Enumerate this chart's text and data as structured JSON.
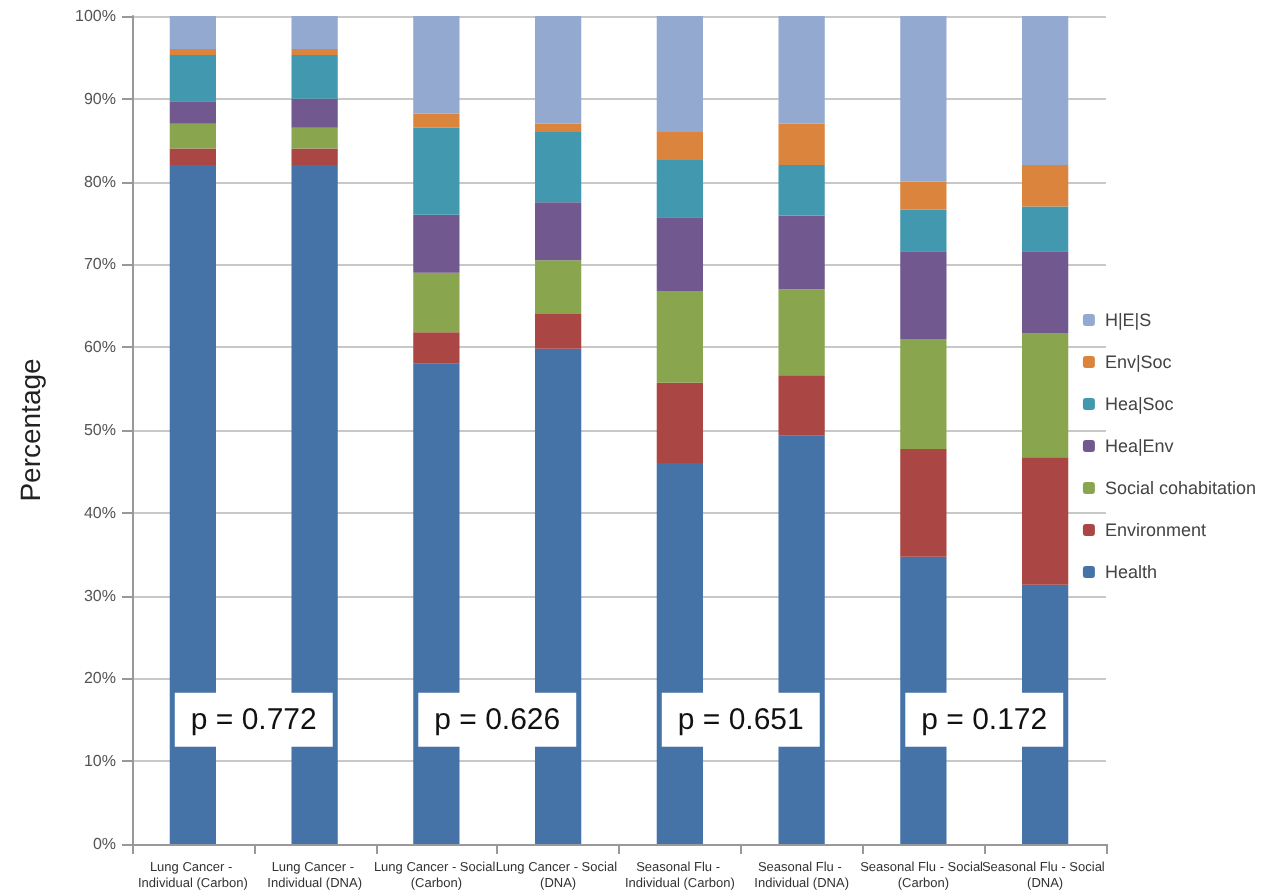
{
  "chart_data": {
    "type": "bar",
    "stacked": true,
    "ylabel": "Percentage",
    "categories": [
      "Lung Cancer - Individual (Carbon)",
      "Lung Cancer - Individual (DNA)",
      "Lung Cancer - Social (Carbon)",
      "Lung Cancer - Social (DNA)",
      "Seasonal Flu - Individual (Carbon)",
      "Seasonal Flu - Individual (DNA)",
      "Seasonal Flu - Social (Carbon)",
      "Seasonal Flu - Social (DNA)"
    ],
    "series": [
      {
        "name": "Health",
        "color": "#4572a7",
        "values": [
          82,
          82,
          58,
          59.8,
          46,
          49.3,
          34.7,
          31.3
        ]
      },
      {
        "name": "Environment",
        "color": "#aa4643",
        "values": [
          2,
          2,
          3.8,
          4.2,
          9.7,
          7.3,
          13,
          15.4
        ]
      },
      {
        "name": "Social cohabitation",
        "color": "#89a54e",
        "values": [
          3,
          2.5,
          7.2,
          6.5,
          11.1,
          10.4,
          13.3,
          15
        ]
      },
      {
        "name": "Hea|Env",
        "color": "#71588f",
        "values": [
          2.7,
          3.5,
          7,
          7,
          8.9,
          8.9,
          10.6,
          9.9
        ]
      },
      {
        "name": "Hea|Soc",
        "color": "#4198af",
        "values": [
          5.6,
          5.3,
          10.5,
          8.5,
          6.9,
          6.1,
          5,
          5.4
        ]
      },
      {
        "name": "Env|Soc",
        "color": "#db843d",
        "values": [
          0.7,
          0.7,
          1.7,
          1,
          3.4,
          5,
          3.4,
          5
        ]
      },
      {
        "name": "H|E|S",
        "color": "#93a9cf",
        "values": [
          4,
          4,
          11.8,
          13,
          14,
          13,
          20,
          18
        ]
      }
    ],
    "ylim": [
      0,
      100
    ],
    "yticks": [
      {
        "value": 0,
        "label": "0%"
      },
      {
        "value": 10,
        "label": "10%"
      },
      {
        "value": 20,
        "label": "20%"
      },
      {
        "value": 30,
        "label": "30%"
      },
      {
        "value": 40,
        "label": "40%"
      },
      {
        "value": 50,
        "label": "50%"
      },
      {
        "value": 60,
        "label": "60%"
      },
      {
        "value": 70,
        "label": "70%"
      },
      {
        "value": 80,
        "label": "80%"
      },
      {
        "value": 90,
        "label": "90%"
      },
      {
        "value": 100,
        "label": "100%"
      }
    ],
    "grid": "y",
    "legend": "right",
    "annotations": [
      "p = 0.772",
      "p = 0.626",
      "p = 0.651",
      "p = 0.172"
    ]
  }
}
